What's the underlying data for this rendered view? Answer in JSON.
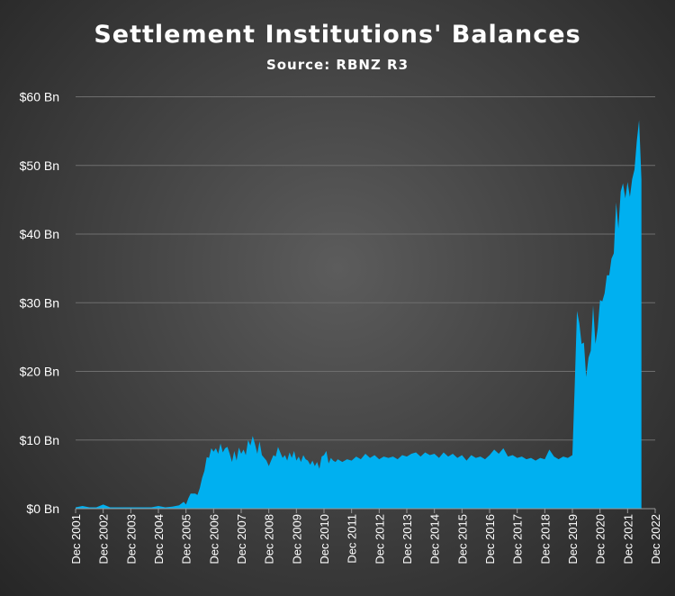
{
  "chart_data": {
    "type": "area",
    "title": "Settlement Institutions' Balances",
    "subtitle": "Source: RBNZ R3",
    "ylim": [
      0,
      60
    ],
    "y_ticks": [
      "$0 Bn",
      "$10 Bn",
      "$20 Bn",
      "$30 Bn",
      "$40 Bn",
      "$50 Bn",
      "$60 Bn"
    ],
    "x_ticks": [
      "Dec 2001",
      "Dec 2002",
      "Dec 2003",
      "Dec 2004",
      "Dec 2005",
      "Dec 2006",
      "Dec 2007",
      "Dec 2008",
      "Dec 2009",
      "Dec 2010",
      "Dec 2011",
      "Dec 2012",
      "Dec 2013",
      "Dec 2014",
      "Dec 2015",
      "Dec 2016",
      "Dec 2017",
      "Dec 2018",
      "Dec 2019",
      "Dec 2020",
      "Dec 2021",
      "Dec 2022"
    ],
    "grid": true,
    "legend": "none",
    "series": [
      {
        "color": "#00b0f0",
        "points": [
          [
            "2001-12",
            0.2
          ],
          [
            "2002-03",
            0.4
          ],
          [
            "2002-06",
            0.2
          ],
          [
            "2002-09",
            0.2
          ],
          [
            "2002-12",
            0.6
          ],
          [
            "2003-03",
            0.2
          ],
          [
            "2003-06",
            0.2
          ],
          [
            "2003-09",
            0.2
          ],
          [
            "2003-12",
            0.2
          ],
          [
            "2004-03",
            0.2
          ],
          [
            "2004-06",
            0.2
          ],
          [
            "2004-09",
            0.2
          ],
          [
            "2004-12",
            0.4
          ],
          [
            "2005-03",
            0.2
          ],
          [
            "2005-06",
            0.3
          ],
          [
            "2005-09",
            0.5
          ],
          [
            "2005-11",
            1.0
          ],
          [
            "2005-12",
            0.6
          ],
          [
            "2006-01",
            1.5
          ],
          [
            "2006-02",
            2.2
          ],
          [
            "2006-04",
            2.2
          ],
          [
            "2006-05",
            2.0
          ],
          [
            "2006-06",
            3.0
          ],
          [
            "2006-07",
            4.5
          ],
          [
            "2006-08",
            5.5
          ],
          [
            "2006-09",
            7.5
          ],
          [
            "2006-10",
            7.4
          ],
          [
            "2006-11",
            8.8
          ],
          [
            "2006-12",
            8.3
          ],
          [
            "2007-01",
            8.8
          ],
          [
            "2007-02",
            8.0
          ],
          [
            "2007-03",
            9.5
          ],
          [
            "2007-04",
            8.2
          ],
          [
            "2007-05",
            8.8
          ],
          [
            "2007-06",
            9.0
          ],
          [
            "2007-07",
            8.0
          ],
          [
            "2007-08",
            6.8
          ],
          [
            "2007-09",
            8.4
          ],
          [
            "2007-10",
            7.0
          ],
          [
            "2007-11",
            8.9
          ],
          [
            "2007-12",
            8.0
          ],
          [
            "2008-01",
            8.6
          ],
          [
            "2008-02",
            7.8
          ],
          [
            "2008-03",
            10.0
          ],
          [
            "2008-04",
            9.2
          ],
          [
            "2008-05",
            10.6
          ],
          [
            "2008-06",
            9.4
          ],
          [
            "2008-07",
            8.0
          ],
          [
            "2008-08",
            9.8
          ],
          [
            "2008-09",
            7.8
          ],
          [
            "2008-10",
            7.4
          ],
          [
            "2008-11",
            7.0
          ],
          [
            "2008-12",
            6.2
          ],
          [
            "2009-01",
            7.0
          ],
          [
            "2009-02",
            7.8
          ],
          [
            "2009-03",
            7.6
          ],
          [
            "2009-04",
            9.0
          ],
          [
            "2009-05",
            8.2
          ],
          [
            "2009-06",
            7.4
          ],
          [
            "2009-07",
            7.8
          ],
          [
            "2009-08",
            7.0
          ],
          [
            "2009-09",
            8.2
          ],
          [
            "2009-10",
            7.4
          ],
          [
            "2009-11",
            8.4
          ],
          [
            "2009-12",
            7.0
          ],
          [
            "2010-01",
            7.6
          ],
          [
            "2010-02",
            6.8
          ],
          [
            "2010-03",
            7.8
          ],
          [
            "2010-04",
            7.2
          ],
          [
            "2010-05",
            7.0
          ],
          [
            "2010-06",
            6.4
          ],
          [
            "2010-07",
            7.0
          ],
          [
            "2010-08",
            6.2
          ],
          [
            "2010-09",
            6.8
          ],
          [
            "2010-10",
            5.8
          ],
          [
            "2010-11",
            7.6
          ],
          [
            "2010-12",
            7.8
          ],
          [
            "2011-01",
            8.4
          ],
          [
            "2011-02",
            6.6
          ],
          [
            "2011-03",
            7.4
          ],
          [
            "2011-04",
            7.0
          ],
          [
            "2011-05",
            6.8
          ],
          [
            "2011-06",
            7.2
          ],
          [
            "2011-08",
            6.8
          ],
          [
            "2011-10",
            7.2
          ],
          [
            "2011-12",
            7.0
          ],
          [
            "2012-02",
            7.6
          ],
          [
            "2012-04",
            7.2
          ],
          [
            "2012-06",
            8.0
          ],
          [
            "2012-08",
            7.4
          ],
          [
            "2012-10",
            7.8
          ],
          [
            "2012-12",
            7.2
          ],
          [
            "2013-02",
            7.6
          ],
          [
            "2013-04",
            7.4
          ],
          [
            "2013-06",
            7.6
          ],
          [
            "2013-08",
            7.2
          ],
          [
            "2013-10",
            7.8
          ],
          [
            "2013-12",
            7.6
          ],
          [
            "2014-02",
            8.0
          ],
          [
            "2014-04",
            8.2
          ],
          [
            "2014-06",
            7.6
          ],
          [
            "2014-08",
            8.2
          ],
          [
            "2014-10",
            7.8
          ],
          [
            "2014-12",
            8.0
          ],
          [
            "2015-02",
            7.4
          ],
          [
            "2015-04",
            8.2
          ],
          [
            "2015-06",
            7.6
          ],
          [
            "2015-08",
            8.0
          ],
          [
            "2015-10",
            7.4
          ],
          [
            "2015-12",
            7.8
          ],
          [
            "2016-02",
            7.0
          ],
          [
            "2016-04",
            7.8
          ],
          [
            "2016-06",
            7.4
          ],
          [
            "2016-08",
            7.6
          ],
          [
            "2016-10",
            7.2
          ],
          [
            "2016-12",
            7.8
          ],
          [
            "2017-02",
            8.6
          ],
          [
            "2017-04",
            8.0
          ],
          [
            "2017-06",
            8.8
          ],
          [
            "2017-08",
            7.6
          ],
          [
            "2017-10",
            7.8
          ],
          [
            "2017-12",
            7.4
          ],
          [
            "2018-02",
            7.6
          ],
          [
            "2018-04",
            7.2
          ],
          [
            "2018-06",
            7.4
          ],
          [
            "2018-08",
            7.0
          ],
          [
            "2018-10",
            7.4
          ],
          [
            "2018-12",
            7.2
          ],
          [
            "2019-02",
            8.6
          ],
          [
            "2019-04",
            7.6
          ],
          [
            "2019-06",
            7.2
          ],
          [
            "2019-08",
            7.6
          ],
          [
            "2019-10",
            7.4
          ],
          [
            "2019-11",
            7.6
          ],
          [
            "2019-12",
            7.8
          ],
          [
            "2020-01",
            18.0
          ],
          [
            "2020-02",
            28.8
          ],
          [
            "2020-03",
            27.0
          ],
          [
            "2020-04",
            24.0
          ],
          [
            "2020-05",
            24.2
          ],
          [
            "2020-06",
            19.2
          ],
          [
            "2020-07",
            22.0
          ],
          [
            "2020-08",
            23.0
          ],
          [
            "2020-09",
            29.6
          ],
          [
            "2020-10",
            24.0
          ],
          [
            "2020-11",
            26.2
          ],
          [
            "2020-12",
            30.4
          ],
          [
            "2021-01",
            30.2
          ],
          [
            "2021-02",
            31.4
          ],
          [
            "2021-03",
            34.0
          ],
          [
            "2021-04",
            34.0
          ],
          [
            "2021-05",
            36.4
          ],
          [
            "2021-06",
            37.2
          ],
          [
            "2021-07",
            44.6
          ],
          [
            "2021-08",
            40.8
          ],
          [
            "2021-09",
            46.2
          ],
          [
            "2021-10",
            47.4
          ],
          [
            "2021-11",
            45.2
          ],
          [
            "2021-12",
            47.6
          ],
          [
            "2022-01",
            45.4
          ],
          [
            "2022-02",
            48.0
          ],
          [
            "2022-03",
            49.4
          ],
          [
            "2022-04",
            53.6
          ],
          [
            "2022-05",
            56.6
          ],
          [
            "2022-06",
            48.0
          ]
        ]
      }
    ]
  }
}
